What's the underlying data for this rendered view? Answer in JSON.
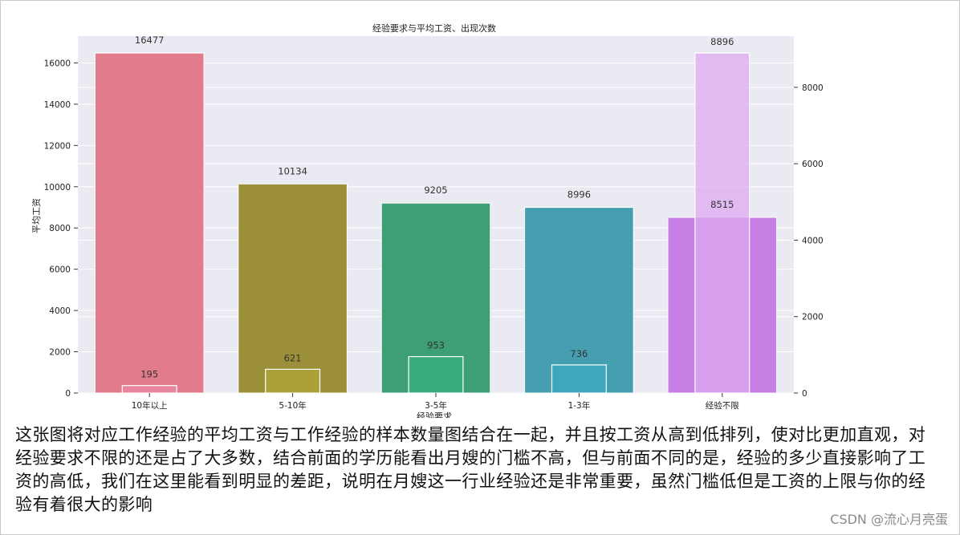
{
  "colors": {
    "plot_background": "#eaeaf2",
    "grid": "#ffffff",
    "bars": [
      "#e27c8d",
      "#9c8f3a",
      "#3f9f74",
      "#469fb1",
      "#c77fe6"
    ],
    "count_bars": [
      "#e98aa0",
      "#b0a63b",
      "#3ab07d",
      "#3ea9c2",
      "#dda9f2"
    ]
  },
  "chart_data": {
    "type": "bar",
    "title": "经验要求与平均工资、出现次数",
    "xlabel": "经验要求",
    "ylabel": "平均工资",
    "y2label": "",
    "categories": [
      "10年以上",
      "5-10年",
      "3-5年",
      "1-3年",
      "经验不限"
    ],
    "series": [
      {
        "values": [
          16477,
          10134,
          9205,
          8996,
          8515
        ],
        "axis": "left"
      },
      {
        "values": [
          195,
          621,
          953,
          736,
          8896
        ],
        "axis": "right"
      }
    ],
    "ylim": [
      0,
      17300
    ],
    "yticks": [
      "0",
      "2000",
      "4000",
      "6000",
      "8000",
      "10000",
      "12000",
      "14000",
      "16000"
    ],
    "y2lim": [
      0,
      9340
    ],
    "y2ticks": [
      "0",
      "2000",
      "4000",
      "6000",
      "8000"
    ],
    "grid": true,
    "legend": "none"
  },
  "caption": "这张图将对应工作经验的平均工资与工作经验的样本数量图结合在一起，并且按工资从高到低排列，使对比更加直观，对经验要求不限的还是占了大多数，结合前面的学历能看出月嫂的门槛不高，但与前面不同的是，经验的多少直接影响了工资的高低，我们在这里能看到明显的差距，说明在月嫂这一行业经验还是非常重要，虽然门槛低但是工资的上限与你的经验有着很大的影响",
  "watermark": "CSDN @流心月亮蛋"
}
